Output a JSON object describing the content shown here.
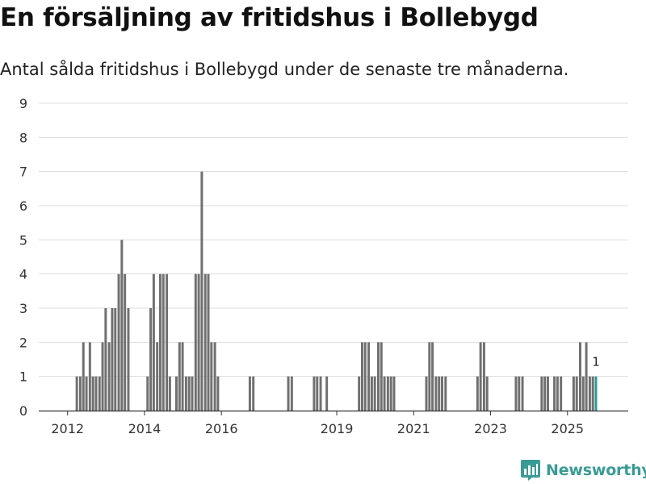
{
  "title": "En försäljning av fritidshus i Bollebygd",
  "subtitle": "Antal sålda fritidshus i Bollebygd under de senaste tre månaderna.",
  "brand": {
    "name": "Newsworthy",
    "color": "#3a9b95"
  },
  "colors": {
    "bar": "#707070",
    "highlight": "#2a9d96",
    "grid": "#dddddd",
    "axis": "#333333"
  },
  "chart_data": {
    "type": "bar",
    "title": "En försäljning av fritidshus i Bollebygd",
    "xlabel": "",
    "ylabel": "",
    "ylim": [
      0,
      9
    ],
    "yticks": [
      0,
      1,
      2,
      3,
      4,
      5,
      6,
      7,
      8,
      9
    ],
    "xlim": [
      2011.25,
      2026.58
    ],
    "xticks": [
      {
        "value": 2012.0,
        "label": "2012"
      },
      {
        "value": 2014.0,
        "label": "2014"
      },
      {
        "value": 2016.0,
        "label": "2016"
      },
      {
        "value": 2019.0,
        "label": "2019"
      },
      {
        "value": 2021.0,
        "label": "2021"
      },
      {
        "value": 2023.0,
        "label": "2023"
      },
      {
        "value": 2025.0,
        "label": "2025"
      }
    ],
    "bar_width_years": 0.0625,
    "series": [
      {
        "name": "Antal sålda fritidshus",
        "points": [
          {
            "x": 2012.24,
            "y": 1
          },
          {
            "x": 2012.33,
            "y": 1
          },
          {
            "x": 2012.41,
            "y": 2
          },
          {
            "x": 2012.49,
            "y": 1
          },
          {
            "x": 2012.58,
            "y": 2
          },
          {
            "x": 2012.66,
            "y": 1
          },
          {
            "x": 2012.74,
            "y": 1
          },
          {
            "x": 2012.83,
            "y": 1
          },
          {
            "x": 2012.91,
            "y": 2
          },
          {
            "x": 2012.99,
            "y": 3
          },
          {
            "x": 2013.08,
            "y": 2
          },
          {
            "x": 2013.16,
            "y": 3
          },
          {
            "x": 2013.24,
            "y": 3
          },
          {
            "x": 2013.33,
            "y": 4
          },
          {
            "x": 2013.41,
            "y": 5
          },
          {
            "x": 2013.49,
            "y": 4
          },
          {
            "x": 2013.58,
            "y": 3
          },
          {
            "x": 2014.08,
            "y": 1
          },
          {
            "x": 2014.16,
            "y": 3
          },
          {
            "x": 2014.24,
            "y": 4
          },
          {
            "x": 2014.33,
            "y": 2
          },
          {
            "x": 2014.41,
            "y": 4
          },
          {
            "x": 2014.49,
            "y": 4
          },
          {
            "x": 2014.58,
            "y": 4
          },
          {
            "x": 2014.66,
            "y": 1
          },
          {
            "x": 2014.83,
            "y": 1
          },
          {
            "x": 2014.91,
            "y": 2
          },
          {
            "x": 2014.99,
            "y": 2
          },
          {
            "x": 2015.08,
            "y": 1
          },
          {
            "x": 2015.16,
            "y": 1
          },
          {
            "x": 2015.24,
            "y": 1
          },
          {
            "x": 2015.33,
            "y": 4
          },
          {
            "x": 2015.41,
            "y": 4
          },
          {
            "x": 2015.49,
            "y": 7
          },
          {
            "x": 2015.58,
            "y": 4
          },
          {
            "x": 2015.66,
            "y": 4
          },
          {
            "x": 2015.74,
            "y": 2
          },
          {
            "x": 2015.83,
            "y": 2
          },
          {
            "x": 2015.91,
            "y": 1
          },
          {
            "x": 2016.74,
            "y": 1
          },
          {
            "x": 2016.83,
            "y": 1
          },
          {
            "x": 2017.74,
            "y": 1
          },
          {
            "x": 2017.83,
            "y": 1
          },
          {
            "x": 2018.41,
            "y": 1
          },
          {
            "x": 2018.49,
            "y": 1
          },
          {
            "x": 2018.58,
            "y": 1
          },
          {
            "x": 2018.74,
            "y": 1
          },
          {
            "x": 2019.58,
            "y": 1
          },
          {
            "x": 2019.66,
            "y": 2
          },
          {
            "x": 2019.74,
            "y": 2
          },
          {
            "x": 2019.83,
            "y": 2
          },
          {
            "x": 2019.91,
            "y": 1
          },
          {
            "x": 2019.99,
            "y": 1
          },
          {
            "x": 2020.08,
            "y": 2
          },
          {
            "x": 2020.16,
            "y": 2
          },
          {
            "x": 2020.24,
            "y": 1
          },
          {
            "x": 2020.33,
            "y": 1
          },
          {
            "x": 2020.41,
            "y": 1
          },
          {
            "x": 2020.49,
            "y": 1
          },
          {
            "x": 2021.33,
            "y": 1
          },
          {
            "x": 2021.41,
            "y": 2
          },
          {
            "x": 2021.49,
            "y": 2
          },
          {
            "x": 2021.58,
            "y": 1
          },
          {
            "x": 2021.66,
            "y": 1
          },
          {
            "x": 2021.74,
            "y": 1
          },
          {
            "x": 2021.83,
            "y": 1
          },
          {
            "x": 2022.66,
            "y": 1
          },
          {
            "x": 2022.74,
            "y": 2
          },
          {
            "x": 2022.83,
            "y": 2
          },
          {
            "x": 2022.91,
            "y": 1
          },
          {
            "x": 2023.66,
            "y": 1
          },
          {
            "x": 2023.74,
            "y": 1
          },
          {
            "x": 2023.83,
            "y": 1
          },
          {
            "x": 2024.33,
            "y": 1
          },
          {
            "x": 2024.41,
            "y": 1
          },
          {
            "x": 2024.49,
            "y": 1
          },
          {
            "x": 2024.66,
            "y": 1
          },
          {
            "x": 2024.74,
            "y": 1
          },
          {
            "x": 2024.83,
            "y": 1
          },
          {
            "x": 2025.16,
            "y": 1
          },
          {
            "x": 2025.24,
            "y": 1
          },
          {
            "x": 2025.33,
            "y": 2
          },
          {
            "x": 2025.41,
            "y": 1
          },
          {
            "x": 2025.49,
            "y": 2
          },
          {
            "x": 2025.58,
            "y": 1
          },
          {
            "x": 2025.66,
            "y": 1
          },
          {
            "x": 2025.74,
            "y": 1,
            "highlight": true,
            "label": "1"
          }
        ]
      }
    ]
  }
}
